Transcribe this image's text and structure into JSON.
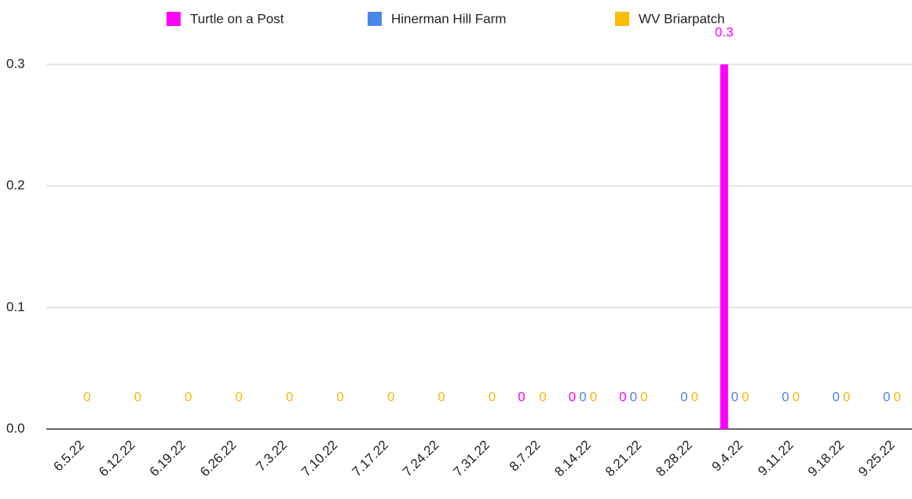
{
  "chart_data": {
    "type": "bar",
    "categories": [
      "6.5.22",
      "6.12.22",
      "6.19.22",
      "6.26.22",
      "7.3.22",
      "7.10.22",
      "7.17.22",
      "7.24.22",
      "7.31.22",
      "8.7.22",
      "8.14.22",
      "8.21.22",
      "8.28.22",
      "9.4.22",
      "9.11.22",
      "9.18.22",
      "9.25.22"
    ],
    "series": [
      {
        "name": "Turtle on a Post",
        "color": "#ff00ff",
        "values": [
          null,
          null,
          null,
          null,
          null,
          null,
          null,
          null,
          null,
          0,
          0,
          0,
          null,
          0.3,
          null,
          null,
          null
        ]
      },
      {
        "name": "Hinerman Hill Farm",
        "color": "#4a86e8",
        "values": [
          null,
          null,
          null,
          null,
          null,
          null,
          null,
          null,
          null,
          null,
          0,
          0,
          0,
          0,
          0,
          0,
          0
        ]
      },
      {
        "name": "WV Briarpatch",
        "color": "#fbbc04",
        "values": [
          0,
          0,
          0,
          0,
          0,
          0,
          0,
          0,
          0,
          0,
          0,
          0,
          0,
          0,
          0,
          0,
          0
        ]
      }
    ],
    "ylim": [
      0,
      0.3
    ],
    "yticks": [
      {
        "value": 0,
        "label": "0.0"
      },
      0.1,
      0.2,
      0.3
    ],
    "grid": true,
    "legend": "top"
  }
}
